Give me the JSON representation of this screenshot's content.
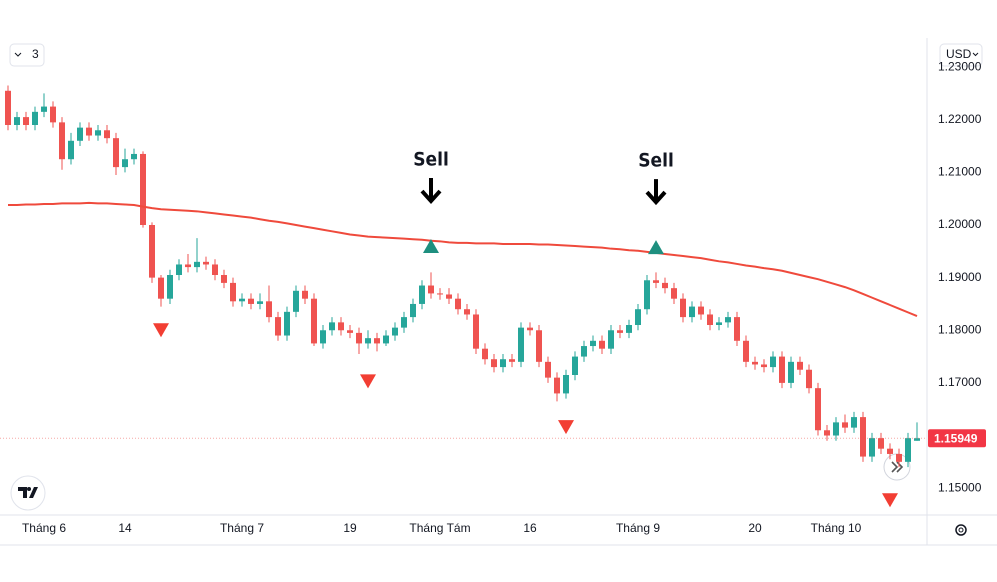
{
  "chart_data": {
    "type": "candlestick",
    "categories": [
      null,
      null,
      null,
      null,
      "Tháng 6",
      null,
      null,
      null,
      null,
      null,
      null,
      null,
      null,
      "14",
      null,
      null,
      null,
      null,
      null,
      null,
      null,
      null,
      null,
      null,
      null,
      null,
      "Tháng 7",
      null,
      null,
      null,
      null,
      null,
      null,
      null,
      null,
      null,
      null,
      null,
      "19",
      null,
      null,
      null,
      null,
      null,
      null,
      null,
      null,
      null,
      "Tháng Tám",
      null,
      null,
      null,
      null,
      null,
      null,
      null,
      null,
      null,
      "16",
      null,
      null,
      null,
      null,
      null,
      null,
      null,
      null,
      null,
      null,
      null,
      "Tháng 9",
      null,
      null,
      null,
      null,
      null,
      null,
      null,
      null,
      null,
      null,
      null,
      null,
      "20",
      null,
      null,
      null,
      null,
      null,
      null,
      null,
      null,
      "Tháng 10",
      null,
      null,
      null,
      null,
      null,
      null,
      null,
      null,
      null
    ],
    "open": [
      1.2255,
      1.219,
      1.2205,
      1.219,
      1.2215,
      1.2225,
      1.2195,
      1.2125,
      1.216,
      1.2185,
      1.217,
      1.218,
      1.2165,
      1.211,
      1.2125,
      1.2135,
      1.2,
      1.19,
      1.186,
      1.1905,
      1.1925,
      1.192,
      1.193,
      1.1925,
      1.1905,
      1.189,
      1.1855,
      1.186,
      1.185,
      1.1855,
      1.1825,
      1.179,
      1.1835,
      1.1875,
      1.186,
      1.1775,
      1.18,
      1.1815,
      1.18,
      1.1795,
      1.1775,
      1.1785,
      1.1775,
      1.179,
      1.1805,
      1.1825,
      1.185,
      1.1885,
      1.187,
      1.1868,
      1.186,
      1.184,
      1.183,
      1.1765,
      1.1745,
      1.173,
      1.1745,
      1.174,
      1.1805,
      1.18,
      1.174,
      1.171,
      1.168,
      1.1715,
      1.175,
      1.177,
      1.178,
      1.1765,
      1.18,
      1.1795,
      1.181,
      1.184,
      1.1895,
      1.189,
      1.188,
      1.186,
      1.1825,
      1.1845,
      1.183,
      1.181,
      1.1815,
      1.1825,
      1.178,
      1.174,
      1.1735,
      1.173,
      1.175,
      1.17,
      1.174,
      1.1725,
      1.169,
      1.161,
      1.16,
      1.1625,
      1.1615,
      1.1635,
      1.156,
      1.1595,
      1.1575,
      1.1565,
      1.155,
      1.159
    ],
    "high": [
      1.2265,
      1.2215,
      1.2215,
      1.2225,
      1.225,
      1.2235,
      1.2205,
      1.2175,
      1.2195,
      1.2195,
      1.219,
      1.219,
      1.2175,
      1.2145,
      1.2145,
      1.214,
      1.2005,
      1.1905,
      1.1915,
      1.1935,
      1.1945,
      1.1975,
      1.194,
      1.1935,
      1.1915,
      1.19,
      1.187,
      1.187,
      1.187,
      1.1885,
      1.1835,
      1.1845,
      1.1885,
      1.1885,
      1.187,
      1.181,
      1.1825,
      1.1825,
      1.181,
      1.1805,
      1.18,
      1.1795,
      1.18,
      1.1815,
      1.1835,
      1.186,
      1.1895,
      1.191,
      1.188,
      1.188,
      1.187,
      1.185,
      1.184,
      1.1775,
      1.1755,
      1.1755,
      1.1755,
      1.1815,
      1.1815,
      1.181,
      1.175,
      1.172,
      1.1725,
      1.176,
      1.178,
      1.179,
      1.179,
      1.181,
      1.181,
      1.182,
      1.185,
      1.1905,
      1.191,
      1.19,
      1.189,
      1.187,
      1.1855,
      1.1855,
      1.184,
      1.1825,
      1.1835,
      1.1835,
      1.179,
      1.175,
      1.1745,
      1.176,
      1.176,
      1.175,
      1.175,
      1.1735,
      1.17,
      1.162,
      1.1635,
      1.164,
      1.1645,
      1.1645,
      1.1605,
      1.1605,
      1.1585,
      1.1575,
      1.1605,
      1.1625
    ],
    "low": [
      1.218,
      1.218,
      1.218,
      1.218,
      1.2205,
      1.2185,
      1.2105,
      1.2115,
      1.215,
      1.216,
      1.216,
      1.2155,
      1.2095,
      1.21,
      1.2115,
      1.1995,
      1.189,
      1.1845,
      1.185,
      1.1895,
      1.191,
      1.191,
      1.1915,
      1.1895,
      1.188,
      1.1845,
      1.1845,
      1.184,
      1.184,
      1.1815,
      1.178,
      1.178,
      1.1825,
      1.185,
      1.177,
      1.1765,
      1.179,
      1.179,
      1.1785,
      1.1755,
      1.1765,
      1.176,
      1.177,
      1.178,
      1.1795,
      1.1815,
      1.184,
      1.186,
      1.1858,
      1.185,
      1.183,
      1.182,
      1.1755,
      1.1735,
      1.172,
      1.172,
      1.173,
      1.173,
      1.179,
      1.173,
      1.17,
      1.1665,
      1.167,
      1.1705,
      1.174,
      1.176,
      1.1755,
      1.1755,
      1.1785,
      1.1785,
      1.18,
      1.183,
      1.188,
      1.187,
      1.185,
      1.1815,
      1.1815,
      1.182,
      1.18,
      1.18,
      1.1805,
      1.177,
      1.173,
      1.1725,
      1.172,
      1.172,
      1.169,
      1.169,
      1.1715,
      1.168,
      1.16,
      1.159,
      1.159,
      1.1605,
      1.1605,
      1.155,
      1.155,
      1.1565,
      1.1555,
      1.154,
      1.154,
      1.159
    ],
    "close": [
      1.219,
      1.2205,
      1.219,
      1.2215,
      1.2225,
      1.2195,
      1.2125,
      1.216,
      1.2185,
      1.217,
      1.218,
      1.2165,
      1.211,
      1.2125,
      1.2135,
      1.2,
      1.19,
      1.186,
      1.1905,
      1.1925,
      1.192,
      1.193,
      1.1925,
      1.1905,
      1.189,
      1.1855,
      1.186,
      1.185,
      1.1855,
      1.1825,
      1.179,
      1.1835,
      1.1875,
      1.186,
      1.1775,
      1.18,
      1.1815,
      1.18,
      1.1795,
      1.1775,
      1.1785,
      1.1775,
      1.179,
      1.1805,
      1.1825,
      1.185,
      1.1885,
      1.187,
      1.1868,
      1.186,
      1.184,
      1.183,
      1.1765,
      1.1745,
      1.173,
      1.1745,
      1.174,
      1.1805,
      1.18,
      1.174,
      1.171,
      1.168,
      1.1715,
      1.175,
      1.177,
      1.178,
      1.1765,
      1.18,
      1.1795,
      1.181,
      1.184,
      1.1895,
      1.189,
      1.188,
      1.186,
      1.1825,
      1.1845,
      1.183,
      1.181,
      1.1815,
      1.1825,
      1.178,
      1.174,
      1.1735,
      1.173,
      1.175,
      1.17,
      1.174,
      1.1725,
      1.169,
      1.161,
      1.16,
      1.1625,
      1.1615,
      1.1635,
      1.156,
      1.1595,
      1.1575,
      1.1565,
      1.155,
      1.1595,
      1.15949
    ],
    "up_color": "#26a69a",
    "down_color": "#ef5350",
    "moving_average": {
      "color": "#ef4a3c",
      "values": [
        1.2038,
        1.2038,
        1.2039,
        1.2039,
        1.204,
        1.204,
        1.2041,
        1.2041,
        1.2041,
        1.2042,
        1.2041,
        1.2041,
        1.204,
        1.2039,
        1.2038,
        1.2035,
        1.2032,
        1.203,
        1.2029,
        1.2028,
        1.2027,
        1.2026,
        1.2024,
        1.2022,
        1.202,
        1.2018,
        1.2016,
        1.2014,
        1.2011,
        1.2008,
        1.2006,
        1.2003,
        1.2,
        1.1997,
        1.1994,
        1.1991,
        1.1988,
        1.1985,
        1.1982,
        1.198,
        1.1978,
        1.1977,
        1.1976,
        1.1975,
        1.1974,
        1.1973,
        1.1972,
        1.197,
        1.1969,
        1.1967,
        1.1966,
        1.1966,
        1.1965,
        1.1965,
        1.1965,
        1.1964,
        1.1964,
        1.1964,
        1.1964,
        1.1963,
        1.1963,
        1.1962,
        1.1961,
        1.196,
        1.1959,
        1.1958,
        1.1957,
        1.1955,
        1.1954,
        1.1952,
        1.1951,
        1.1949,
        1.1947,
        1.1945,
        1.1943,
        1.1941,
        1.1939,
        1.1937,
        1.1934,
        1.1931,
        1.1929,
        1.1926,
        1.1923,
        1.1921,
        1.1918,
        1.1916,
        1.1913,
        1.1909,
        1.1905,
        1.1901,
        1.1897,
        1.1892,
        1.1887,
        1.1882,
        1.1876,
        1.1869,
        1.1862,
        1.1855,
        1.1848,
        1.1841,
        1.1834,
        1.1827
      ]
    },
    "up_markers": {
      "color": "#1e8f7f",
      "values": [
        null,
        null,
        null,
        null,
        null,
        null,
        null,
        null,
        null,
        null,
        null,
        null,
        null,
        null,
        null,
        null,
        null,
        null,
        null,
        null,
        null,
        null,
        null,
        null,
        null,
        null,
        null,
        null,
        null,
        null,
        null,
        null,
        null,
        null,
        null,
        null,
        null,
        null,
        null,
        null,
        null,
        null,
        null,
        null,
        null,
        null,
        null,
        1.196,
        null,
        null,
        null,
        null,
        null,
        null,
        null,
        null,
        null,
        null,
        null,
        null,
        null,
        null,
        null,
        null,
        null,
        null,
        null,
        null,
        null,
        null,
        null,
        null,
        1.1958,
        null,
        null,
        null,
        null,
        null,
        null,
        null,
        null,
        null,
        null,
        null,
        null,
        null,
        null,
        null,
        null,
        null,
        null,
        null,
        null,
        null,
        null,
        null,
        null,
        null,
        null,
        null,
        null,
        null
      ],
      "labels": [
        null,
        null,
        null,
        null,
        null,
        null,
        null,
        null,
        null,
        null,
        null,
        null,
        null,
        null,
        null,
        null,
        null,
        null,
        null,
        null,
        null,
        null,
        null,
        null,
        null,
        null,
        null,
        null,
        null,
        null,
        null,
        null,
        null,
        null,
        null,
        null,
        null,
        null,
        null,
        null,
        null,
        null,
        null,
        null,
        null,
        null,
        null,
        "Sell",
        null,
        null,
        null,
        null,
        null,
        null,
        null,
        null,
        null,
        null,
        null,
        null,
        null,
        null,
        null,
        null,
        null,
        null,
        null,
        null,
        null,
        null,
        null,
        null,
        "Sell",
        null,
        null,
        null,
        null,
        null,
        null,
        null,
        null,
        null,
        null,
        null,
        null,
        null,
        null,
        null,
        null,
        null,
        null,
        null,
        null,
        null,
        null,
        null,
        null,
        null,
        null,
        null,
        null,
        null
      ]
    },
    "down_markers": {
      "color": "#f23e33",
      "values": [
        null,
        null,
        null,
        null,
        null,
        null,
        null,
        null,
        null,
        null,
        null,
        null,
        null,
        null,
        null,
        null,
        null,
        1.18,
        null,
        null,
        null,
        null,
        null,
        null,
        null,
        null,
        null,
        null,
        null,
        null,
        null,
        null,
        null,
        null,
        null,
        null,
        null,
        null,
        null,
        null,
        1.1703,
        null,
        null,
        null,
        null,
        null,
        null,
        null,
        null,
        null,
        null,
        null,
        null,
        null,
        null,
        null,
        null,
        null,
        null,
        null,
        null,
        null,
        1.1616,
        null,
        null,
        null,
        null,
        null,
        null,
        null,
        null,
        null,
        null,
        null,
        null,
        null,
        null,
        null,
        null,
        null,
        null,
        null,
        null,
        null,
        null,
        null,
        null,
        null,
        null,
        null,
        null,
        null,
        null,
        null,
        null,
        null,
        null,
        null,
        1.1477,
        null,
        null
      ]
    },
    "ylim": [
      1.1449,
      1.2342
    ],
    "yticks": [
      {
        "value": 1.15,
        "label": "1.15000"
      },
      {
        "value": 1.16,
        "label": "1.16000"
      },
      {
        "value": 1.17,
        "label": "1.17000"
      },
      {
        "value": 1.18,
        "label": "1.18000"
      },
      {
        "value": 1.19,
        "label": "1.19000"
      },
      {
        "value": 1.2,
        "label": "1.20000"
      },
      {
        "value": 1.21,
        "label": "1.21000"
      },
      {
        "value": 1.22,
        "label": "1.22000"
      },
      {
        "value": 1.23,
        "label": "1.23000"
      }
    ],
    "grid": false,
    "currency": "USD",
    "indicator_count": 3,
    "last_price_label": "1.15949"
  }
}
